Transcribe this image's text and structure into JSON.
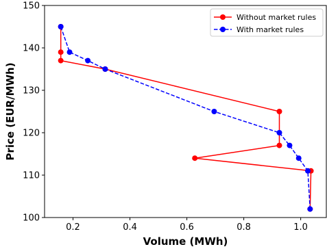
{
  "chart_data": {
    "type": "line",
    "xlabel": "Volume (MWh)",
    "ylabel": "Price (EUR/MWh)",
    "xlim": [
      0.1,
      1.09
    ],
    "ylim": [
      100,
      150
    ],
    "xticks": [
      "0.2",
      "0.4",
      "0.6",
      "0.8",
      "1.0"
    ],
    "xtick_values": [
      0.2,
      0.4,
      0.6,
      0.8,
      1.0
    ],
    "yticks": [
      "100",
      "110",
      "120",
      "130",
      "140",
      "150"
    ],
    "ytick_values": [
      100,
      110,
      120,
      130,
      140,
      150
    ],
    "grid": false,
    "legend_position": "top-right",
    "series": [
      {
        "name": "Without market rules",
        "color": "#ff0000",
        "line_style": "solid",
        "marker": "circle",
        "points": [
          {
            "x": 0.157,
            "y": 145
          },
          {
            "x": 0.157,
            "y": 139
          },
          {
            "x": 0.157,
            "y": 137
          },
          {
            "x": 0.313,
            "y": 135
          },
          {
            "x": 0.925,
            "y": 125
          },
          {
            "x": 0.925,
            "y": 117
          },
          {
            "x": 0.628,
            "y": 114
          },
          {
            "x": 1.036,
            "y": 111
          },
          {
            "x": 1.033,
            "y": 102
          }
        ]
      },
      {
        "name": "With market rules",
        "color": "#0000ff",
        "line_style": "dashed",
        "marker": "circle",
        "points": [
          {
            "x": 0.157,
            "y": 145
          },
          {
            "x": 0.188,
            "y": 139
          },
          {
            "x": 0.252,
            "y": 137
          },
          {
            "x": 0.313,
            "y": 135
          },
          {
            "x": 0.696,
            "y": 125
          },
          {
            "x": 0.925,
            "y": 120
          },
          {
            "x": 0.961,
            "y": 117
          },
          {
            "x": 0.993,
            "y": 114
          },
          {
            "x": 1.025,
            "y": 111
          },
          {
            "x": 1.033,
            "y": 102
          }
        ]
      }
    ]
  }
}
